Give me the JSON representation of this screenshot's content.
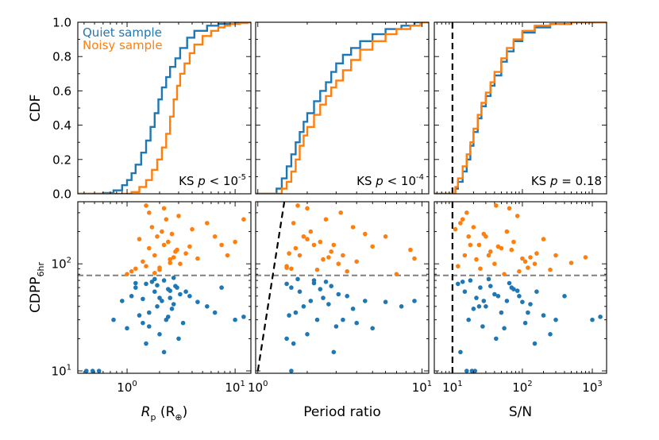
{
  "colors": {
    "quiet": "#1f77b4",
    "noisy": "#ff7f0e",
    "threshold": "#808080",
    "line": "#000000"
  },
  "legend": {
    "entries": [
      "Quiet sample",
      "Noisy sample"
    ],
    "placement": "top-left"
  },
  "chart_data": [
    {
      "id": "cdf-radius",
      "type": "line",
      "ylabel": "CDF",
      "xscale": "log",
      "xlim": [
        0.35,
        14
      ],
      "ylim": [
        0,
        1
      ],
      "yticks": [
        "0.0",
        "0.2",
        "0.4",
        "0.6",
        "0.8",
        "1.0"
      ],
      "annotation": "KS p < 10^-5",
      "series": [
        {
          "name": "Quiet sample",
          "x": [
            0.45,
            0.6,
            0.75,
            0.9,
            1.0,
            1.1,
            1.2,
            1.35,
            1.5,
            1.65,
            1.8,
            1.95,
            2.1,
            2.3,
            2.5,
            2.8,
            3.1,
            3.6,
            4.2,
            5.5,
            7,
            10
          ],
          "y": [
            0.0,
            0.005,
            0.02,
            0.05,
            0.08,
            0.12,
            0.17,
            0.24,
            0.31,
            0.39,
            0.47,
            0.55,
            0.62,
            0.68,
            0.74,
            0.79,
            0.85,
            0.91,
            0.95,
            0.98,
            0.99,
            1.0
          ]
        },
        {
          "name": "Noisy sample",
          "x": [
            1.0,
            1.1,
            1.3,
            1.5,
            1.7,
            1.9,
            2.1,
            2.3,
            2.5,
            2.7,
            2.9,
            3.1,
            3.4,
            3.8,
            4.2,
            5,
            6,
            7,
            8,
            9,
            11,
            13
          ],
          "y": [
            0.0,
            0.01,
            0.04,
            0.08,
            0.14,
            0.2,
            0.27,
            0.35,
            0.45,
            0.55,
            0.63,
            0.7,
            0.76,
            0.82,
            0.87,
            0.92,
            0.95,
            0.97,
            0.98,
            0.99,
            0.995,
            1.0
          ]
        }
      ]
    },
    {
      "id": "cdf-period",
      "type": "line",
      "xscale": "log",
      "xlim": [
        0.97,
        11
      ],
      "ylim": [
        0,
        1
      ],
      "annotation": "KS p < 10^-4",
      "series": [
        {
          "name": "Quiet sample",
          "x": [
            1.22,
            1.3,
            1.4,
            1.5,
            1.6,
            1.7,
            1.8,
            1.9,
            2.0,
            2.2,
            2.4,
            2.6,
            2.8,
            3.0,
            3.3,
            3.7,
            4.2,
            5,
            6,
            7.5,
            9
          ],
          "y": [
            0.0,
            0.03,
            0.09,
            0.16,
            0.23,
            0.3,
            0.36,
            0.42,
            0.47,
            0.54,
            0.6,
            0.65,
            0.71,
            0.76,
            0.81,
            0.85,
            0.89,
            0.93,
            0.96,
            0.98,
            1.0
          ]
        },
        {
          "name": "Noisy sample",
          "x": [
            1.3,
            1.4,
            1.5,
            1.6,
            1.7,
            1.8,
            1.9,
            2.0,
            2.2,
            2.4,
            2.6,
            2.8,
            3.0,
            3.3,
            3.7,
            4.2,
            5,
            6,
            7,
            8.5,
            9.8
          ],
          "y": [
            0.0,
            0.03,
            0.07,
            0.13,
            0.2,
            0.28,
            0.34,
            0.39,
            0.46,
            0.52,
            0.57,
            0.62,
            0.66,
            0.72,
            0.78,
            0.84,
            0.89,
            0.93,
            0.96,
            0.98,
            1.0
          ]
        }
      ]
    },
    {
      "id": "cdf-snr",
      "type": "line",
      "xscale": "log",
      "xlim": [
        5.5,
        1600
      ],
      "ylim": [
        0,
        1
      ],
      "annotation": "KS p = 0.18",
      "threshold_x": 10,
      "series": [
        {
          "name": "Quiet sample",
          "x": [
            10,
            11,
            12,
            14,
            16,
            18,
            20,
            23,
            26,
            30,
            35,
            40,
            50,
            60,
            75,
            100,
            150,
            250,
            500,
            1000
          ],
          "y": [
            0.0,
            0.03,
            0.07,
            0.13,
            0.2,
            0.28,
            0.36,
            0.44,
            0.51,
            0.57,
            0.63,
            0.69,
            0.77,
            0.83,
            0.89,
            0.94,
            0.97,
            0.99,
            1.0,
            1.0
          ]
        },
        {
          "name": "Noisy sample",
          "x": [
            10,
            11,
            12,
            14,
            16,
            18,
            20,
            23,
            26,
            30,
            35,
            40,
            50,
            60,
            75,
            100,
            150,
            250,
            500,
            1000
          ],
          "y": [
            0.0,
            0.04,
            0.09,
            0.16,
            0.23,
            0.3,
            0.38,
            0.46,
            0.53,
            0.59,
            0.65,
            0.71,
            0.79,
            0.85,
            0.9,
            0.95,
            0.98,
            0.99,
            1.0,
            1.0
          ]
        }
      ]
    },
    {
      "id": "scatter-radius",
      "type": "scatter",
      "ylabel": "CDPP",
      "ylabel_sub": "6hr",
      "xlabel": "R",
      "xlabel_sub": "p",
      "xlabel_unit_open": "(R",
      "xlabel_unit_sub": "⊕",
      "xlabel_unit_close": ")",
      "xscale": "log",
      "yscale": "log",
      "xlim": [
        0.35,
        14
      ],
      "ylim": [
        9.5,
        380
      ],
      "xticks": [
        {
          "base": "10",
          "exp": "0",
          "value": 1
        },
        {
          "base": "10",
          "exp": "1",
          "value": 10
        }
      ],
      "yticks": [
        {
          "base": "10",
          "exp": "1",
          "value": 10
        },
        {
          "base": "10",
          "exp": "2",
          "value": 100
        }
      ],
      "threshold_y": 78,
      "series": [
        {
          "name": "Quiet sample",
          "x": [
            1.5,
            1.8,
            2.2,
            2.5,
            1.2,
            1.9,
            2.8,
            3.1,
            1.6,
            2.1,
            2.4,
            1.1,
            1.4,
            2.7,
            3.5,
            1.3,
            2.0,
            2.3,
            1.7,
            2.6,
            0.9,
            3.8,
            1.0,
            2.9,
            4.5,
            1.5,
            2.2,
            0.75,
            5.5,
            1.8,
            3.0,
            1.2,
            2.5,
            6.5,
            1.6,
            2.0,
            0.55,
            0.42,
            0.48,
            1.4,
            2.4,
            3.3,
            1.9,
            2.7,
            10,
            12,
            7.5
          ],
          "y": [
            65,
            55,
            70,
            48,
            60,
            40,
            62,
            52,
            35,
            45,
            58,
            50,
            28,
            42,
            55,
            33,
            22,
            30,
            68,
            38,
            45,
            50,
            25,
            60,
            44,
            18,
            15,
            30,
            40,
            72,
            20,
            66,
            56,
            35,
            26,
            48,
            10,
            10,
            10,
            47,
            32,
            28,
            63,
            74,
            30,
            32,
            60
          ]
        },
        {
          "name": "Noisy sample",
          "x": [
            1.5,
            1.8,
            2.2,
            2.5,
            1.2,
            1.9,
            2.8,
            3.1,
            1.6,
            2.1,
            2.4,
            1.1,
            1.4,
            2.7,
            3.5,
            1.3,
            2.0,
            2.3,
            1.7,
            2.6,
            3.8,
            1.0,
            2.9,
            4.5,
            5.5,
            6.5,
            7.5,
            8.5,
            10,
            12,
            1.5,
            2.2,
            3.0,
            2.0,
            2.5,
            1.8,
            1.6,
            4.0
          ],
          "y": [
            95,
            120,
            150,
            110,
            90,
            180,
            130,
            100,
            140,
            200,
            160,
            85,
            105,
            115,
            125,
            170,
            88,
            260,
            220,
            190,
            145,
            80,
            135,
            112,
            240,
            180,
            150,
            120,
            160,
            260,
            350,
            330,
            280,
            92,
            102,
            82,
            300,
            210
          ]
        }
      ]
    },
    {
      "id": "scatter-period",
      "type": "scatter",
      "xlabel": "Period ratio",
      "xscale": "log",
      "yscale": "log",
      "xlim": [
        0.97,
        11
      ],
      "ylim": [
        9.5,
        380
      ],
      "xticks": [
        {
          "base": "10",
          "exp": "0",
          "value": 1
        },
        {
          "base": "10",
          "exp": "1",
          "value": 10
        }
      ],
      "threshold_y": 78,
      "stability_line": {
        "x": [
          1.0,
          1.45
        ],
        "y": [
          10,
          380
        ]
      },
      "series": [
        {
          "name": "Quiet sample",
          "x": [
            1.5,
            1.8,
            2.2,
            2.5,
            1.6,
            1.9,
            2.8,
            3.1,
            1.7,
            2.1,
            2.4,
            3.5,
            4.0,
            2.7,
            1.55,
            2.0,
            2.3,
            2.6,
            3.8,
            4.5,
            5.0,
            6.0,
            1.65,
            2.9,
            3.3,
            7.5,
            9.0,
            1.75,
            1.5,
            1.6,
            2.2,
            3.0
          ],
          "y": [
            65,
            55,
            70,
            48,
            60,
            40,
            62,
            52,
            35,
            45,
            58,
            50,
            28,
            42,
            33,
            22,
            30,
            68,
            38,
            45,
            25,
            44,
            18,
            15,
            30,
            40,
            45,
            72,
            20,
            10,
            66,
            26
          ]
        },
        {
          "name": "Noisy sample",
          "x": [
            1.5,
            1.8,
            2.2,
            2.5,
            1.6,
            1.9,
            2.8,
            3.1,
            1.7,
            2.1,
            2.4,
            3.5,
            4.0,
            2.7,
            1.55,
            2.0,
            2.3,
            2.6,
            3.8,
            4.5,
            5.0,
            6.0,
            7.0,
            8.5,
            9.0,
            1.65,
            2.9,
            3.3,
            1.75,
            2.0,
            1.5,
            3.2
          ],
          "y": [
            95,
            120,
            150,
            110,
            90,
            180,
            130,
            100,
            140,
            200,
            160,
            85,
            105,
            115,
            125,
            170,
            88,
            260,
            220,
            190,
            145,
            180,
            80,
            135,
            112,
            240,
            150,
            120,
            350,
            330,
            92,
            300
          ]
        }
      ]
    },
    {
      "id": "scatter-snr",
      "type": "scatter",
      "xlabel": "S/N",
      "xscale": "log",
      "yscale": "log",
      "xlim": [
        5.5,
        1600
      ],
      "ylim": [
        9.5,
        380
      ],
      "xticks": [
        {
          "base": "10",
          "exp": "1",
          "value": 10
        },
        {
          "base": "10",
          "exp": "2",
          "value": 100
        },
        {
          "base": "10",
          "exp": "3",
          "value": 1000
        }
      ],
      "threshold_x": 10,
      "threshold_y": 78,
      "series": [
        {
          "name": "Quiet sample",
          "x": [
            12,
            15,
            18,
            22,
            25,
            30,
            35,
            40,
            50,
            60,
            75,
            90,
            110,
            130,
            160,
            200,
            250,
            300,
            14,
            20,
            28,
            45,
            55,
            70,
            100,
            150,
            13,
            17,
            24,
            33,
            42,
            65,
            85,
            120,
            400,
            1000,
            1300,
            16,
            19,
            21,
            27
          ],
          "y": [
            65,
            55,
            70,
            48,
            60,
            40,
            62,
            52,
            35,
            45,
            58,
            50,
            28,
            42,
            55,
            33,
            22,
            30,
            68,
            38,
            45,
            50,
            25,
            60,
            44,
            18,
            15,
            30,
            40,
            72,
            20,
            66,
            56,
            35,
            50,
            30,
            32,
            10,
            10,
            10,
            26
          ]
        },
        {
          "name": "Noisy sample",
          "x": [
            12,
            15,
            18,
            22,
            25,
            30,
            35,
            40,
            50,
            60,
            75,
            90,
            110,
            130,
            160,
            200,
            250,
            300,
            14,
            20,
            28,
            45,
            55,
            70,
            100,
            150,
            13,
            17,
            24,
            33,
            42,
            65,
            85,
            120,
            500,
            800,
            16,
            11
          ],
          "y": [
            95,
            120,
            150,
            110,
            90,
            180,
            130,
            100,
            140,
            200,
            160,
            85,
            105,
            115,
            125,
            170,
            88,
            120,
            260,
            220,
            190,
            145,
            80,
            135,
            112,
            100,
            240,
            180,
            150,
            120,
            350,
            330,
            280,
            92,
            102,
            115,
            300,
            210
          ]
        }
      ]
    }
  ]
}
